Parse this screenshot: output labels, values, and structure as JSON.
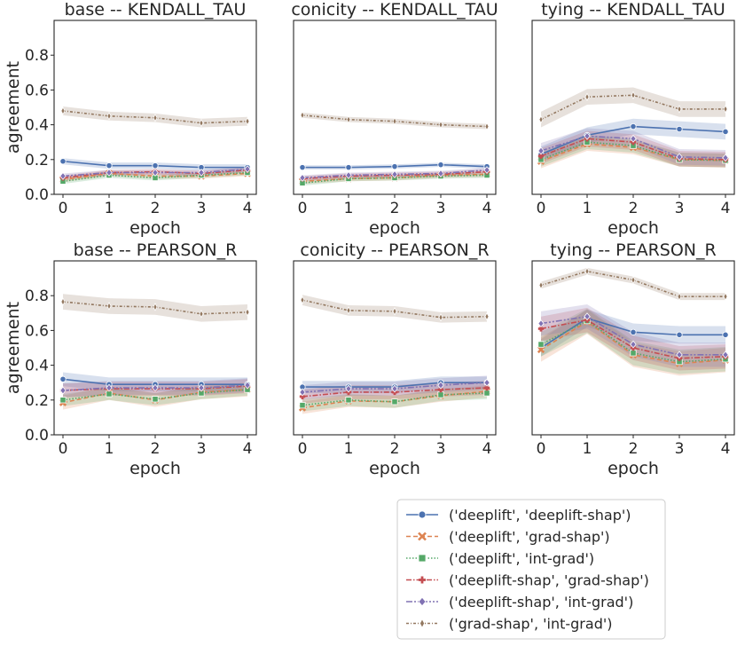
{
  "chart_data": {
    "type": "line",
    "grid": false,
    "legend_position": "bottom-right",
    "x": [
      0,
      1,
      2,
      3,
      4
    ],
    "xlabel": "epoch",
    "ylabel": "agreement",
    "ylim": [
      0,
      1
    ],
    "yticks": [
      "0.0",
      "0.2",
      "0.4",
      "0.6",
      "0.8"
    ],
    "xticks": [
      "0",
      "1",
      "2",
      "3",
      "4"
    ],
    "legend": [
      {
        "name": "('deeplift', 'deeplift-shap')",
        "color": "#4c72b0",
        "marker": "circle",
        "dash": ""
      },
      {
        "name": "('deeplift', 'grad-shap')",
        "color": "#dd8452",
        "marker": "x",
        "dash": "5,3"
      },
      {
        "name": "('deeplift', 'int-grad')",
        "color": "#55a868",
        "marker": "square",
        "dash": "1.5,2"
      },
      {
        "name": "('deeplift-shap', 'grad-shap')",
        "color": "#c44e52",
        "marker": "plus",
        "dash": "6,2,1.5,2"
      },
      {
        "name": "('deeplift-shap', 'int-grad')",
        "color": "#8172b3",
        "marker": "diamond",
        "dash": "7,2,2,2,2,2"
      },
      {
        "name": "('grad-shap', 'int-grad')",
        "color": "#937860",
        "marker": "diamond-thin",
        "dash": "3,2,1,2"
      }
    ],
    "panels": [
      {
        "title": "base -- KENDALL_TAU",
        "show_ylabel": true,
        "series": [
          {
            "values": [
              0.19,
              0.165,
              0.165,
              0.155,
              0.155
            ],
            "band": 0.018
          },
          {
            "values": [
              0.085,
              0.12,
              0.105,
              0.105,
              0.12
            ],
            "band": 0.015
          },
          {
            "values": [
              0.075,
              0.11,
              0.095,
              0.11,
              0.125
            ],
            "band": 0.015
          },
          {
            "values": [
              0.095,
              0.125,
              0.13,
              0.12,
              0.14
            ],
            "band": 0.015
          },
          {
            "values": [
              0.105,
              0.125,
              0.125,
              0.125,
              0.145
            ],
            "band": 0.015
          },
          {
            "values": [
              0.48,
              0.45,
              0.44,
              0.41,
              0.42
            ],
            "band": 0.025
          }
        ]
      },
      {
        "title": "conicity -- KENDALL_TAU",
        "show_ylabel": false,
        "series": [
          {
            "values": [
              0.155,
              0.155,
              0.16,
              0.17,
              0.16
            ],
            "band": 0.012
          },
          {
            "values": [
              0.075,
              0.09,
              0.095,
              0.11,
              0.115
            ],
            "band": 0.015
          },
          {
            "values": [
              0.065,
              0.09,
              0.095,
              0.105,
              0.11
            ],
            "band": 0.015
          },
          {
            "values": [
              0.09,
              0.105,
              0.11,
              0.115,
              0.13
            ],
            "band": 0.015
          },
          {
            "values": [
              0.095,
              0.11,
              0.115,
              0.12,
              0.14
            ],
            "band": 0.015
          },
          {
            "values": [
              0.455,
              0.43,
              0.42,
              0.4,
              0.39
            ],
            "band": 0.015
          }
        ]
      },
      {
        "title": "tying -- KENDALL_TAU",
        "show_ylabel": false,
        "series": [
          {
            "values": [
              0.23,
              0.34,
              0.39,
              0.375,
              0.36
            ],
            "band": 0.045
          },
          {
            "values": [
              0.19,
              0.29,
              0.27,
              0.2,
              0.195
            ],
            "band": 0.04
          },
          {
            "values": [
              0.2,
              0.3,
              0.28,
              0.2,
              0.195
            ],
            "band": 0.04
          },
          {
            "values": [
              0.22,
              0.32,
              0.3,
              0.205,
              0.2
            ],
            "band": 0.045
          },
          {
            "values": [
              0.25,
              0.335,
              0.32,
              0.215,
              0.21
            ],
            "band": 0.045
          },
          {
            "values": [
              0.43,
              0.56,
              0.57,
              0.49,
              0.49
            ],
            "band": 0.045
          }
        ]
      },
      {
        "title": "base -- PEARSON_R",
        "show_ylabel": true,
        "series": [
          {
            "values": [
              0.32,
              0.29,
              0.29,
              0.29,
              0.29
            ],
            "band": 0.04
          },
          {
            "values": [
              0.185,
              0.24,
              0.2,
              0.245,
              0.26
            ],
            "band": 0.04
          },
          {
            "values": [
              0.2,
              0.235,
              0.205,
              0.24,
              0.26
            ],
            "band": 0.035
          },
          {
            "values": [
              0.255,
              0.265,
              0.265,
              0.265,
              0.28
            ],
            "band": 0.04
          },
          {
            "values": [
              0.255,
              0.27,
              0.27,
              0.27,
              0.285
            ],
            "band": 0.04
          },
          {
            "values": [
              0.765,
              0.74,
              0.735,
              0.695,
              0.705
            ],
            "band": 0.045
          }
        ]
      },
      {
        "title": "conicity -- PEARSON_R",
        "show_ylabel": false,
        "series": [
          {
            "values": [
              0.275,
              0.275,
              0.275,
              0.3,
              0.3
            ],
            "band": 0.035
          },
          {
            "values": [
              0.155,
              0.195,
              0.19,
              0.225,
              0.25
            ],
            "band": 0.035
          },
          {
            "values": [
              0.17,
              0.2,
              0.19,
              0.23,
              0.24
            ],
            "band": 0.035
          },
          {
            "values": [
              0.22,
              0.245,
              0.245,
              0.26,
              0.27
            ],
            "band": 0.04
          },
          {
            "values": [
              0.245,
              0.265,
              0.265,
              0.285,
              0.3
            ],
            "band": 0.04
          },
          {
            "values": [
              0.775,
              0.715,
              0.71,
              0.675,
              0.68
            ],
            "band": 0.03
          }
        ]
      },
      {
        "title": "tying -- PEARSON_R",
        "show_ylabel": false,
        "series": [
          {
            "values": [
              0.5,
              0.67,
              0.59,
              0.575,
              0.575
            ],
            "band": 0.05
          },
          {
            "values": [
              0.49,
              0.65,
              0.46,
              0.41,
              0.43
            ],
            "band": 0.07
          },
          {
            "values": [
              0.52,
              0.655,
              0.47,
              0.42,
              0.435
            ],
            "band": 0.07
          },
          {
            "values": [
              0.61,
              0.66,
              0.5,
              0.44,
              0.45
            ],
            "band": 0.07
          },
          {
            "values": [
              0.64,
              0.68,
              0.52,
              0.46,
              0.46
            ],
            "band": 0.07
          },
          {
            "values": [
              0.86,
              0.94,
              0.89,
              0.795,
              0.795
            ],
            "band": 0.02
          }
        ]
      }
    ]
  }
}
